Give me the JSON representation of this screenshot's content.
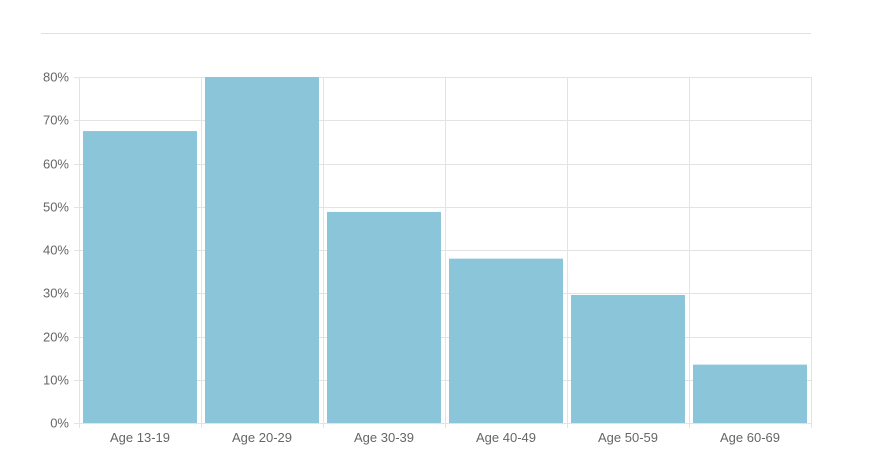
{
  "chart_data": {
    "type": "bar",
    "categories": [
      "Age 13-19",
      "Age 20-29",
      "Age 30-39",
      "Age 40-49",
      "Age 50-59",
      "Age 60-69"
    ],
    "values": [
      67.5,
      80,
      48.8,
      38,
      29.6,
      13.5
    ],
    "title": "",
    "xlabel": "",
    "ylabel": "",
    "ylim": [
      0,
      80
    ],
    "ytick_step": 10,
    "ytick_suffix": "%",
    "grid": true,
    "bar_color": "#8bc5d9",
    "grid_color": "#e3e3e3",
    "label_color": "#666666"
  }
}
